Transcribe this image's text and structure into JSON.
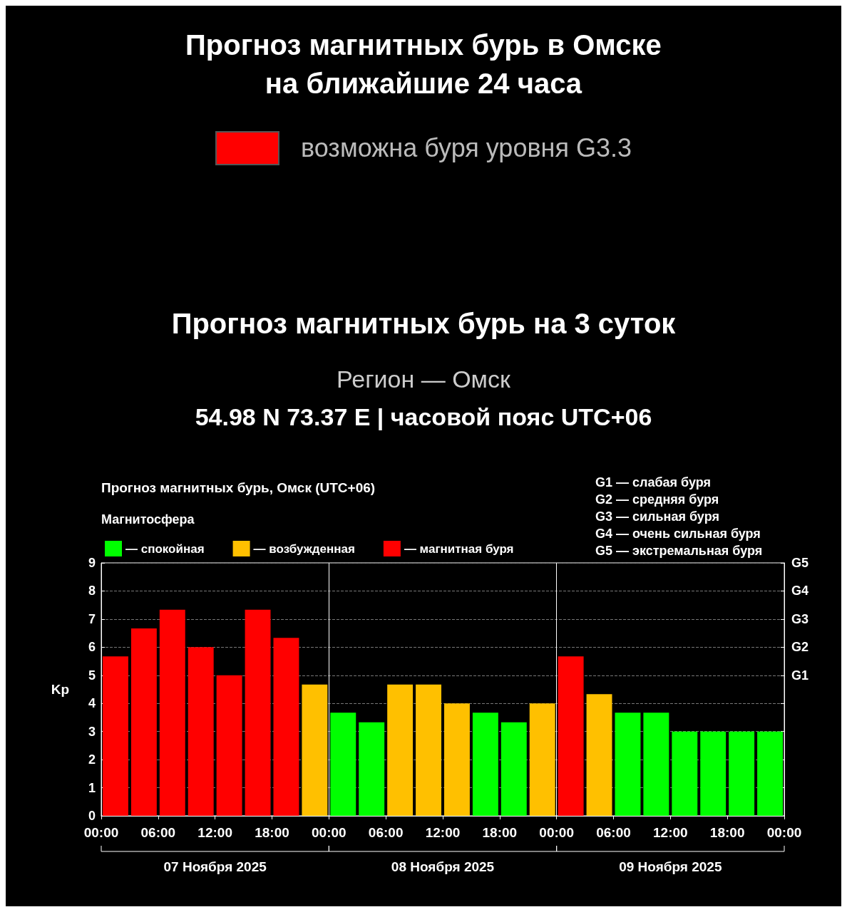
{
  "chart_data": {
    "type": "bar",
    "title": "Прогноз магнитных бурь в Омске на ближайшие 24 часа",
    "subtitle": "Прогноз магнитных бурь на 3 суток",
    "annotations": [
      "возможна буря уровня G3.3",
      "Регион — Омск",
      "54.98 N 73.37 E | часовой пояс UTC+06",
      "Прогноз магнитных бурь, Омск (UTC+06)",
      "G1 — слабая буря",
      "G2 — средняя буря",
      "G3 — сильная буря",
      "G4 — очень сильная буря",
      "G5 — экстремальная буря",
      "07 Ноября 2025",
      "08 Ноября 2025",
      "09 Ноября 2025",
      "G1",
      "G2",
      "G3",
      "G4",
      "G5"
    ],
    "ylabel": "Kp",
    "legend_title": "Магнитосфера",
    "legend": "top left",
    "stacked": true,
    "grid": "y",
    "x": [
      "2025-11-07T01:30",
      "2025-11-07T04:30",
      "2025-11-07T07:30",
      "2025-11-07T10:30",
      "2025-11-07T13:30",
      "2025-11-07T16:30",
      "2025-11-07T19:30",
      "2025-11-07T22:30",
      "2025-11-08T01:30",
      "2025-11-08T04:30",
      "2025-11-08T07:30",
      "2025-11-08T10:30",
      "2025-11-08T13:30",
      "2025-11-08T16:30",
      "2025-11-08T19:30",
      "2025-11-08T22:30",
      "2025-11-09T01:30",
      "2025-11-09T04:30",
      "2025-11-09T07:30",
      "2025-11-09T10:30",
      "2025-11-09T13:30",
      "2025-11-09T16:30",
      "2025-11-09T19:30",
      "2025-11-09T22:30"
    ],
    "series": [
      {
        "name": "— спокойная",
        "color": "#00ff00",
        "values": [
          null,
          null,
          null,
          null,
          null,
          null,
          null,
          null,
          3.67,
          3.33,
          null,
          null,
          null,
          3.67,
          3.33,
          null,
          null,
          null,
          3.67,
          3.67,
          3,
          3,
          3,
          3
        ]
      },
      {
        "name": "— возбужденная",
        "color": "#ffc000",
        "values": [
          null,
          null,
          null,
          null,
          null,
          null,
          null,
          4.67,
          null,
          null,
          4.67,
          4.67,
          4,
          null,
          null,
          4,
          null,
          4.33,
          null,
          null,
          null,
          null,
          null,
          null
        ]
      },
      {
        "name": "— магнитная буря",
        "color": "#ff0000",
        "values": [
          5.67,
          6.67,
          7.33,
          6,
          5,
          7.33,
          6.33,
          null,
          null,
          null,
          null,
          null,
          null,
          null,
          null,
          null,
          5.67,
          null,
          null,
          null,
          null,
          null,
          null,
          null
        ]
      }
    ],
    "xlim": [
      "2025-11-07T00:00",
      "2025-11-10T00:00"
    ],
    "xticks": [
      {
        "value": "2025-11-07T00:00",
        "label": "00:00"
      },
      {
        "value": "2025-11-07T06:00",
        "label": "06:00"
      },
      {
        "value": "2025-11-07T12:00",
        "label": "12:00"
      },
      {
        "value": "2025-11-07T18:00",
        "label": "18:00"
      },
      {
        "value": "2025-11-08T00:00",
        "label": "00:00"
      },
      {
        "value": "2025-11-08T06:00",
        "label": "06:00"
      },
      {
        "value": "2025-11-08T12:00",
        "label": "12:00"
      },
      {
        "value": "2025-11-08T18:00",
        "label": "18:00"
      },
      {
        "value": "2025-11-09T00:00",
        "label": "00:00"
      },
      {
        "value": "2025-11-09T06:00",
        "label": "06:00"
      },
      {
        "value": "2025-11-09T12:00",
        "label": "12:00"
      },
      {
        "value": "2025-11-09T18:00",
        "label": "18:00"
      },
      {
        "value": "2025-11-10T00:00",
        "label": "00:00"
      }
    ],
    "ylim": [
      0,
      9
    ],
    "yticks": [
      0,
      1,
      2,
      3,
      4,
      5,
      6,
      7,
      8,
      9
    ],
    "ref_lines": [
      {
        "axis": "x",
        "value": "2025-11-08T00:00",
        "color": "#ffffff"
      },
      {
        "axis": "x",
        "value": "2025-11-09T00:00",
        "color": "#ffffff"
      }
    ]
  }
}
